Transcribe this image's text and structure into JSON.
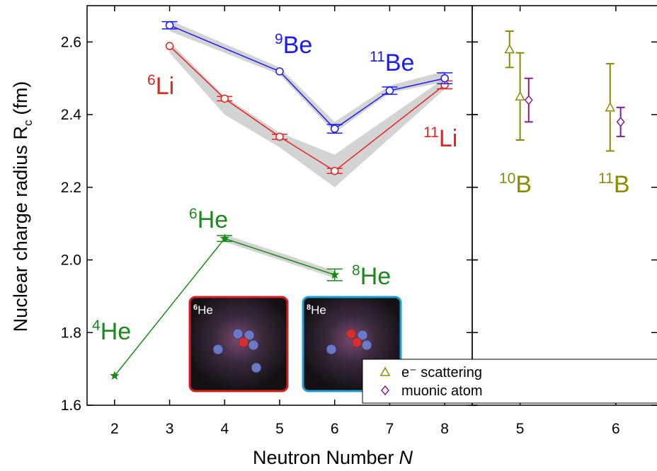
{
  "chart_data": [
    {
      "type": "line",
      "xlabel": "Neutron Number",
      "xlabel_var": "N",
      "ylabel": "Nuclear charge radius  R",
      "ylabel_sub": "c",
      "ylabel_unit": "(fm)",
      "xlim": [
        1.5,
        8.5
      ],
      "xticks": [
        2,
        3,
        4,
        5,
        6,
        7,
        8
      ],
      "ylim": [
        1.6,
        2.7
      ],
      "yticks": [
        1.6,
        1.8,
        {
          "value": 2,
          "label": "2.0"
        },
        2.2,
        2.4,
        2.6
      ],
      "series": [
        {
          "color": "#e8231f",
          "marker": "circle",
          "x": [
            3,
            4,
            5,
            6,
            8
          ],
          "values": [
            2.589,
            2.444,
            2.339,
            2.245,
            2.482
          ],
          "errors": [
            null,
            0.006,
            0.007,
            0.007,
            0.011
          ],
          "band_lower": [
            2.57,
            2.4,
            2.31,
            2.2,
            2.47
          ],
          "band_upper": [
            2.6,
            2.45,
            2.35,
            2.29,
            2.5
          ]
        },
        {
          "color": "#1a1aff",
          "marker": "circle",
          "x": [
            3,
            5,
            6,
            7,
            8
          ],
          "values": [
            2.646,
            2.519,
            2.361,
            2.466,
            2.5
          ],
          "errors": [
            0.01,
            null,
            0.012,
            0.01,
            0.015
          ],
          "band_lower": [
            2.63,
            2.51,
            2.35,
            2.46,
            2.49
          ],
          "band_upper": [
            2.66,
            2.53,
            2.38,
            2.48,
            2.52
          ]
        },
        {
          "color": "#1a8a1a",
          "marker": "star",
          "x": [
            2,
            4,
            6
          ],
          "values": [
            1.681,
            2.059,
            1.959
          ],
          "errors": [
            null,
            0.008,
            0.016
          ],
          "band_lower": [
            null,
            2.05,
            1.95
          ],
          "band_upper": [
            null,
            2.07,
            1.97
          ]
        }
      ],
      "annotations": [
        {
          "mass": "6",
          "symbol": "Li",
          "color": "#e8231f"
        },
        {
          "mass": "9",
          "symbol": "Be",
          "color": "#1a1aff"
        },
        {
          "mass": "11",
          "symbol": "Be",
          "color": "#1a1aff"
        },
        {
          "mass": "11",
          "symbol": "Li",
          "color": "#e8231f"
        },
        {
          "mass": "6",
          "symbol": "He",
          "color": "#1a8a1a"
        },
        {
          "mass": "8",
          "symbol": "He",
          "color": "#1a8a1a"
        },
        {
          "mass": "4",
          "symbol": "He",
          "color": "#1a8a1a"
        }
      ],
      "insets": [
        {
          "mass": "6",
          "symbol": "He",
          "frame": "#d42020"
        },
        {
          "mass": "8",
          "symbol": "He",
          "frame": "#1ea0d0"
        }
      ]
    },
    {
      "type": "scatter",
      "xlim": [
        4.5,
        6.43
      ],
      "xticks": [
        5,
        6
      ],
      "ylim": [
        1.6,
        2.7
      ],
      "legend": "lower right",
      "series": [
        {
          "name": "e⁻ scattering",
          "color": "#8b8b00",
          "marker": "triangle",
          "x": [
            4.89,
            5.0,
            5.94
          ],
          "values": [
            2.58,
            2.45,
            2.42
          ],
          "errors": [
            0.05,
            0.12,
            0.12
          ]
        },
        {
          "name": "muonic atom",
          "color": "#8b1a8b",
          "marker": "diamond",
          "x": [
            5.09,
            6.05
          ],
          "values": [
            2.44,
            2.38
          ],
          "errors": [
            0.06,
            0.04
          ]
        }
      ],
      "annotations": [
        {
          "mass": "10",
          "symbol": "B",
          "color": "#8b8b00"
        },
        {
          "mass": "11",
          "symbol": "B",
          "color": "#8b8b00"
        }
      ]
    }
  ]
}
